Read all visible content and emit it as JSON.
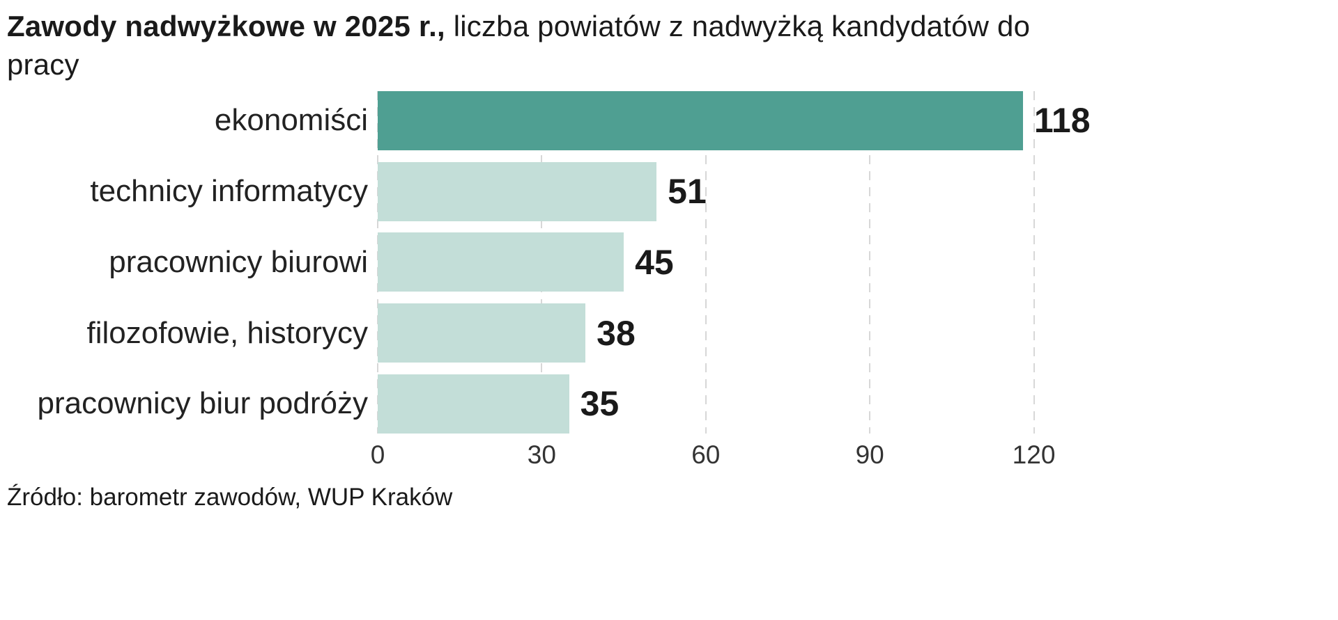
{
  "title": {
    "bold": "Zawody nadwyżkowe w 2025 r.,",
    "rest": " liczba powiatów z nadwyżką kandydatów do pracy"
  },
  "source": "Źródło: barometr zawodów, WUP Kraków",
  "chart_data": {
    "type": "bar",
    "orientation": "horizontal",
    "title": "Zawody nadwyżkowe w 2025 r., liczba powiatów z nadwyżką kandydatów do pracy",
    "categories": [
      "ekonomiści",
      "technicy informatycy",
      "pracownicy biurowi",
      "filozofowie, historycy",
      "pracownicy biur podróży"
    ],
    "values": [
      118,
      51,
      45,
      38,
      35
    ],
    "ticks": [
      0,
      30,
      60,
      90,
      120
    ],
    "xlim": [
      0,
      130
    ],
    "bar_colors": [
      "#4f9f92",
      "#c3ded8",
      "#c3ded8",
      "#c3ded8",
      "#c3ded8"
    ],
    "gridline_color": "#d7d7d7",
    "grid": "dashed-vertical",
    "legend": false,
    "source": "Źródło: barometr zawodów, WUP Kraków"
  }
}
